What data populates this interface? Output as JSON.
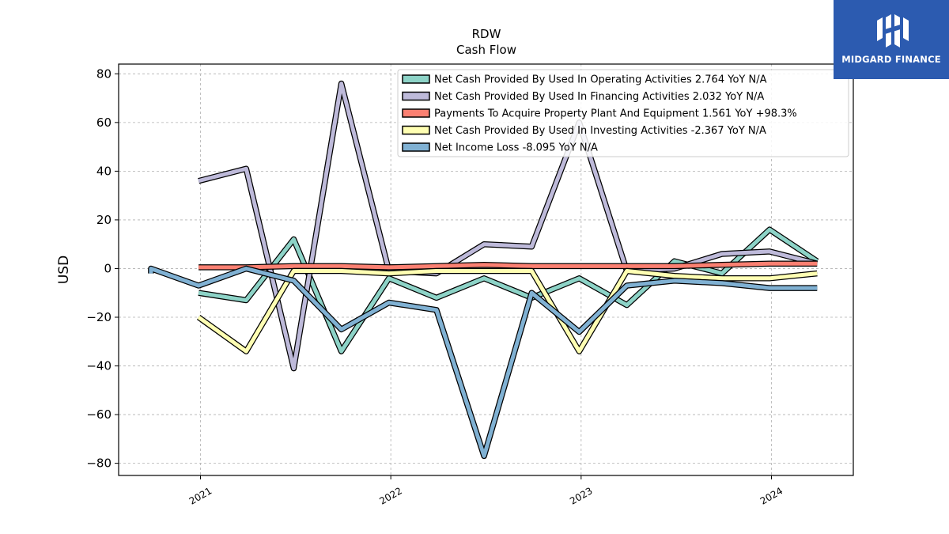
{
  "brand": {
    "name": "MIDGARD FINANCE",
    "logo_icon": "midgard-logo-icon",
    "background_color": "#2c5bb0"
  },
  "chart_data": {
    "type": "line",
    "title": "RDW",
    "subtitle": "Cash Flow",
    "xlabel": "",
    "ylabel": "USD",
    "ylim": [
      -85,
      84
    ],
    "xlim": [
      2020.57,
      2024.43
    ],
    "yticks": [
      -80,
      -60,
      -40,
      -20,
      0,
      20,
      40,
      60,
      80
    ],
    "ytick_labels": [
      "−80",
      "−60",
      "−40",
      "−20",
      "0",
      "20",
      "40",
      "60",
      "80"
    ],
    "xticks": [
      2021,
      2022,
      2023,
      2024
    ],
    "xtick_labels": [
      "2021",
      "2022",
      "2023",
      "2024"
    ],
    "grid": true,
    "legend_position": "top-right",
    "series": [
      {
        "name": "Net Cash Provided By Used In Operating Activities  2.764 YoY N/A",
        "color": "#8dd3c7",
        "points": [
          [
            2020.99,
            -10
          ],
          [
            2021.24,
            -13
          ],
          [
            2021.49,
            12
          ],
          [
            2021.74,
            -34
          ],
          [
            2021.99,
            -4
          ],
          [
            2022.24,
            -12
          ],
          [
            2022.49,
            -4
          ],
          [
            2022.74,
            -12
          ],
          [
            2022.99,
            -4
          ],
          [
            2023.24,
            -15
          ],
          [
            2023.49,
            3
          ],
          [
            2023.74,
            -2
          ],
          [
            2023.99,
            16
          ],
          [
            2024.24,
            3
          ]
        ]
      },
      {
        "name": "Net Cash Provided By Used In Financing Activities  2.032 YoY N/A",
        "color": "#bebada",
        "points": [
          [
            2020.99,
            36
          ],
          [
            2021.24,
            41
          ],
          [
            2021.49,
            -41
          ],
          [
            2021.74,
            76
          ],
          [
            2021.99,
            -1
          ],
          [
            2022.24,
            -2
          ],
          [
            2022.49,
            10
          ],
          [
            2022.74,
            9
          ],
          [
            2022.99,
            60
          ],
          [
            2023.24,
            -1
          ],
          [
            2023.49,
            0
          ],
          [
            2023.74,
            6
          ],
          [
            2023.99,
            7
          ],
          [
            2024.24,
            2
          ]
        ]
      },
      {
        "name": "Payments To Acquire Property Plant And Equipment  1.561 YoY +98.3%",
        "color": "#fb8072",
        "points": [
          [
            2020.99,
            0.5
          ],
          [
            2021.24,
            0.5
          ],
          [
            2021.49,
            1
          ],
          [
            2021.74,
            1
          ],
          [
            2021.99,
            0.5
          ],
          [
            2022.24,
            1
          ],
          [
            2022.49,
            1.5
          ],
          [
            2022.74,
            1
          ],
          [
            2022.99,
            1
          ],
          [
            2023.24,
            1
          ],
          [
            2023.49,
            1
          ],
          [
            2023.74,
            1.5
          ],
          [
            2023.99,
            2
          ],
          [
            2024.24,
            2
          ]
        ]
      },
      {
        "name": "Net Cash Provided By Used In Investing Activities  -2.367 YoY N/A",
        "color": "#ffffb3",
        "points": [
          [
            2020.99,
            -20
          ],
          [
            2021.24,
            -34
          ],
          [
            2021.49,
            -1
          ],
          [
            2021.74,
            -1
          ],
          [
            2021.99,
            -2
          ],
          [
            2022.24,
            -1
          ],
          [
            2022.49,
            -1
          ],
          [
            2022.74,
            -1
          ],
          [
            2022.99,
            -34
          ],
          [
            2023.24,
            -1
          ],
          [
            2023.49,
            -3
          ],
          [
            2023.74,
            -4
          ],
          [
            2023.99,
            -4
          ],
          [
            2024.24,
            -2
          ]
        ]
      },
      {
        "name": "Net Income Loss  -8.095 YoY N/A",
        "color": "#80b1d3",
        "points": [
          [
            2020.74,
            -2
          ],
          [
            2020.74,
            0
          ],
          [
            2020.99,
            -7
          ],
          [
            2021.24,
            0
          ],
          [
            2021.49,
            -5
          ],
          [
            2021.74,
            -25
          ],
          [
            2021.99,
            -14
          ],
          [
            2022.24,
            -17
          ],
          [
            2022.49,
            -77
          ],
          [
            2022.74,
            -10
          ],
          [
            2022.99,
            -26
          ],
          [
            2023.24,
            -7
          ],
          [
            2023.49,
            -5
          ],
          [
            2023.74,
            -6
          ],
          [
            2023.99,
            -8
          ],
          [
            2024.24,
            -8
          ]
        ]
      }
    ]
  }
}
